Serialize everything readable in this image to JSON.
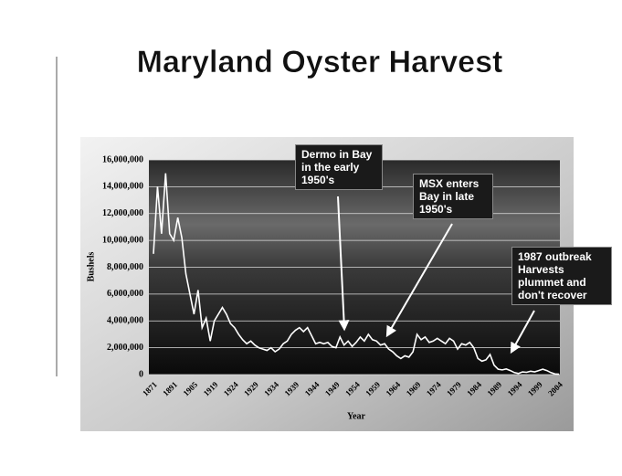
{
  "chart_data": {
    "type": "line",
    "title": "Maryland Oyster Harvest",
    "x_label": "Year",
    "y_label": "Bushels",
    "categories": [
      "1871",
      null,
      null,
      null,
      null,
      "1891",
      null,
      null,
      null,
      null,
      "1905",
      null,
      null,
      null,
      null,
      "1919",
      null,
      null,
      null,
      null,
      "1924",
      null,
      null,
      null,
      null,
      "1929",
      null,
      null,
      null,
      null,
      "1934",
      null,
      null,
      null,
      null,
      "1939",
      null,
      null,
      null,
      null,
      "1944",
      null,
      null,
      null,
      null,
      "1949",
      null,
      null,
      null,
      null,
      "1954",
      null,
      null,
      null,
      null,
      "1959",
      null,
      null,
      null,
      null,
      "1964",
      null,
      null,
      null,
      null,
      "1969",
      null,
      null,
      null,
      null,
      "1974",
      null,
      null,
      null,
      null,
      "1979",
      null,
      null,
      null,
      null,
      "1984",
      null,
      null,
      null,
      null,
      "1989",
      null,
      null,
      null,
      null,
      "1994",
      null,
      null,
      null,
      null,
      "1999",
      null,
      null,
      null,
      null,
      "2004"
    ],
    "series": [
      {
        "name": "Bushels",
        "color": "#ffffff",
        "values": [
          9000000,
          14000000,
          10500000,
          15000000,
          10500000,
          10000000,
          11700000,
          10200000,
          7500000,
          6000000,
          4500000,
          6300000,
          3500000,
          4200000,
          2500000,
          4000000,
          4500000,
          5000000,
          4500000,
          3800000,
          3500000,
          3000000,
          2600000,
          2300000,
          2500000,
          2200000,
          2000000,
          1900000,
          1800000,
          2000000,
          1700000,
          1900000,
          2300000,
          2500000,
          3000000,
          3300000,
          3500000,
          3200000,
          3500000,
          2900000,
          2300000,
          2400000,
          2300000,
          2400000,
          2100000,
          2000000,
          2800000,
          2200000,
          2500000,
          2100000,
          2400000,
          2800000,
          2500000,
          3000000,
          2600000,
          2500000,
          2200000,
          2300000,
          1900000,
          1700000,
          1400000,
          1200000,
          1400000,
          1300000,
          1700000,
          3000000,
          2600000,
          2800000,
          2400000,
          2500000,
          2700000,
          2500000,
          2300000,
          2700000,
          2500000,
          1900000,
          2300000,
          2200000,
          2400000,
          2000000,
          1200000,
          1000000,
          1100000,
          1500000,
          700000,
          400000,
          350000,
          420000,
          300000,
          150000,
          80000,
          200000,
          170000,
          250000,
          200000,
          300000,
          400000,
          300000,
          150000,
          50000,
          30000
        ]
      }
    ],
    "ylim": [
      0,
      16000000
    ],
    "yticks": [
      0,
      {
        "value": 2000000,
        "label": "2,000,000"
      },
      {
        "value": 4000000,
        "label": "4,000,000"
      },
      {
        "value": 6000000,
        "label": "6,000,000"
      },
      {
        "value": 8000000,
        "label": "8,000,000"
      },
      {
        "value": 10000000,
        "label": "10,000,000"
      },
      {
        "value": 12000000,
        "label": "12,000,000"
      },
      {
        "value": 14000000,
        "label": "14,000,000"
      },
      {
        "value": 16000000,
        "label": "16,000,000"
      }
    ],
    "grid": true,
    "annotations": [
      "Dermo in Bay in the early 1950's",
      "MSX enters Bay in late 1950's",
      "1987 outbreak Harvests plummet and don't recover"
    ]
  }
}
